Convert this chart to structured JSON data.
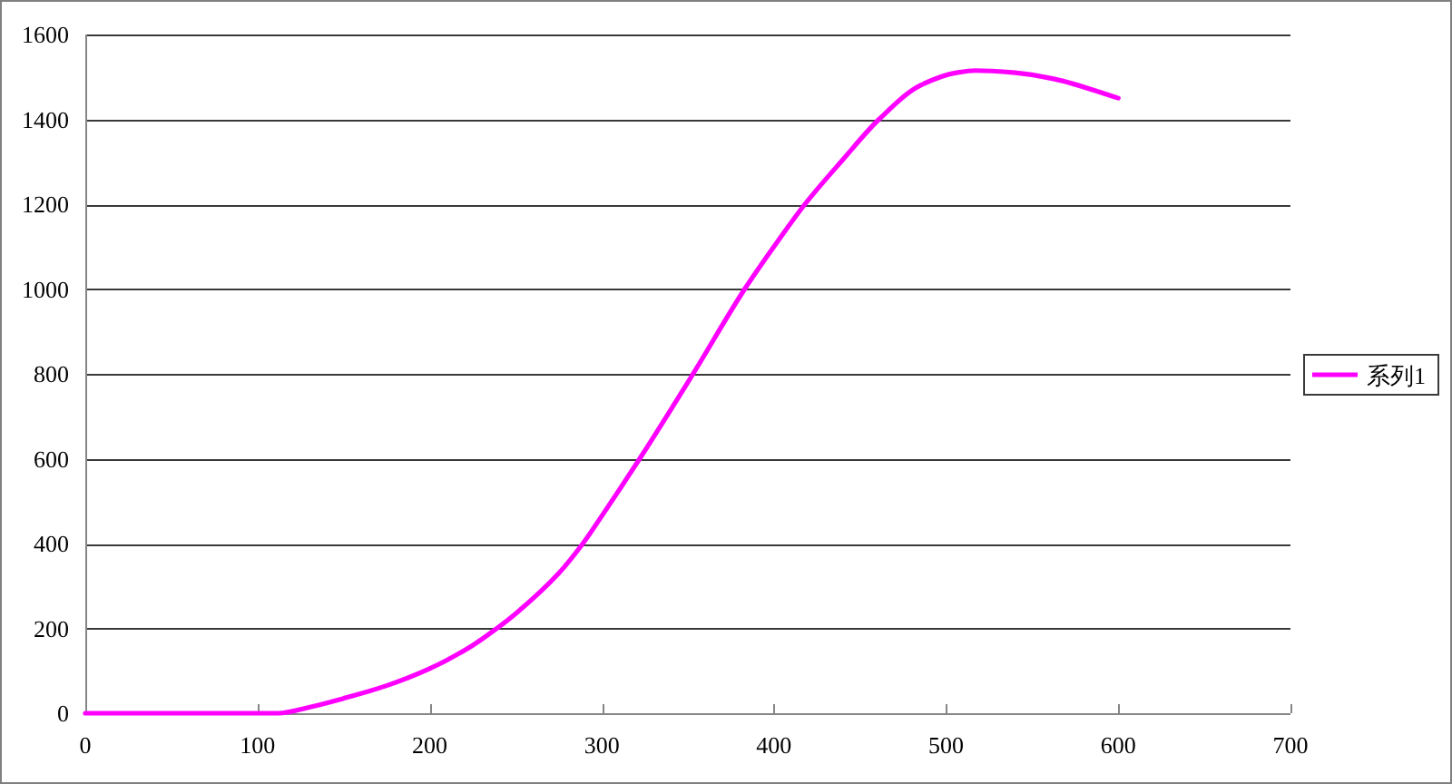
{
  "chart_data": {
    "type": "line",
    "series": [
      {
        "name": "系列1",
        "color": "#ff00ff",
        "x": [
          0,
          50,
          100,
          112,
          130,
          150,
          175,
          200,
          225,
          239,
          250,
          275,
          289,
          300,
          322,
          353,
          383,
          400,
          418,
          440,
          461,
          485,
          506,
          517,
          540,
          563,
          600
        ],
        "values": [
          0,
          0,
          0,
          0,
          14,
          35,
          65,
          105,
          160,
          200,
          235,
          330,
          400,
          465,
          600,
          800,
          1000,
          1100,
          1200,
          1305,
          1400,
          1480,
          1510,
          1515,
          1510,
          1495,
          1450
        ]
      }
    ],
    "xlim": [
      0,
      700
    ],
    "xticks": [
      0,
      100,
      200,
      300,
      400,
      500,
      600,
      700
    ],
    "ylim": [
      0,
      1600
    ],
    "yticks": [
      0,
      200,
      400,
      600,
      800,
      1000,
      1200,
      1400,
      1600
    ],
    "grid": "y",
    "legend": "right"
  }
}
